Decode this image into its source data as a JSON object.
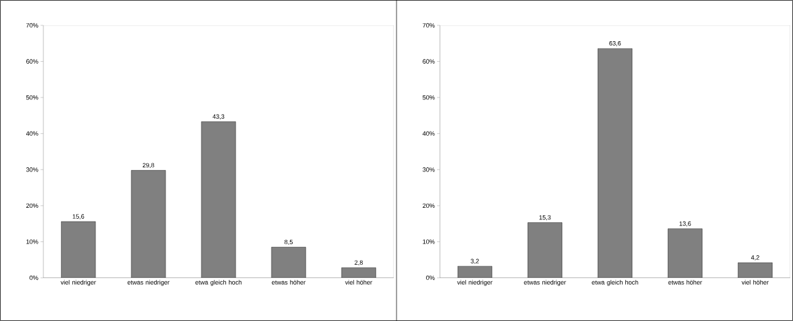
{
  "chart_data": [
    {
      "type": "bar",
      "categories": [
        "viel niedriger",
        "etwas niedriger",
        "etwa gleich hoch",
        "etwas höher",
        "viel höher"
      ],
      "values": [
        15.6,
        29.8,
        43.3,
        8.5,
        2.8
      ],
      "value_labels": [
        "15,6",
        "29,8",
        "43,3",
        "8,5",
        "2,8"
      ],
      "color": "#808080",
      "ylim": [
        0,
        70
      ],
      "yticks": [
        {
          "value": 0,
          "label": "0%"
        },
        {
          "value": 10,
          "label": "10%"
        },
        {
          "value": 20,
          "label": "20%"
        },
        {
          "value": 30,
          "label": "30%"
        },
        {
          "value": 40,
          "label": "40%"
        },
        {
          "value": 50,
          "label": "50%"
        },
        {
          "value": 60,
          "label": "60%"
        },
        {
          "value": 70,
          "label": "70%"
        }
      ]
    },
    {
      "type": "bar",
      "categories": [
        "viel niedriger",
        "etwas niedriger",
        "etwa gleich hoch",
        "etwas höher",
        "viel höher"
      ],
      "values": [
        3.2,
        15.3,
        63.6,
        13.6,
        4.2
      ],
      "value_labels": [
        "3,2",
        "15,3",
        "63,6",
        "13,6",
        "4,2"
      ],
      "color": "#808080",
      "ylim": [
        0,
        70
      ],
      "yticks": [
        {
          "value": 0,
          "label": "0%"
        },
        {
          "value": 10,
          "label": "10%"
        },
        {
          "value": 20,
          "label": "20%"
        },
        {
          "value": 30,
          "label": "30%"
        },
        {
          "value": 40,
          "label": "40%"
        },
        {
          "value": 50,
          "label": "50%"
        },
        {
          "value": 60,
          "label": "60%"
        },
        {
          "value": 70,
          "label": "70%"
        }
      ]
    }
  ]
}
